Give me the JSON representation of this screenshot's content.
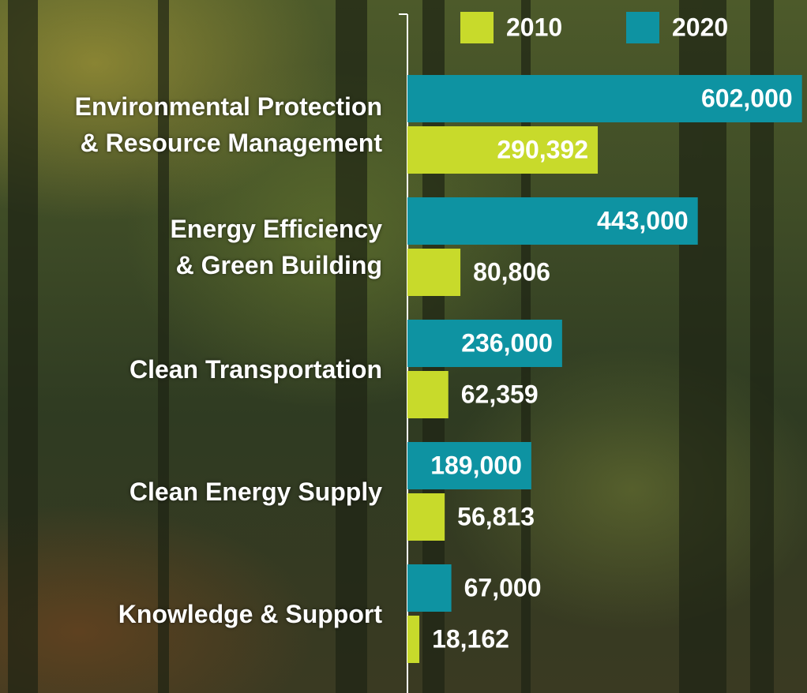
{
  "chart_data": {
    "type": "bar",
    "orientation": "horizontal",
    "categories": [
      "Environmental Protection\n& Resource Management",
      "Energy Efficiency\n& Green Building",
      "Clean Transportation",
      "Clean Energy Supply",
      "Knowledge & Support"
    ],
    "series": [
      {
        "name": "2010",
        "color": "#c8da2b",
        "values": [
          290392,
          80806,
          62359,
          56813,
          18162
        ],
        "value_labels": [
          "290,392",
          "80,806",
          "62,359",
          "56,813",
          "18,162"
        ]
      },
      {
        "name": "2020",
        "color": "#0e93a2",
        "values": [
          602000,
          443000,
          236000,
          189000,
          67000
        ],
        "value_labels": [
          "602,000",
          "443,000",
          "236,000",
          "189,000",
          "67,000"
        ]
      }
    ],
    "xlim": [
      0,
      600000
    ]
  }
}
